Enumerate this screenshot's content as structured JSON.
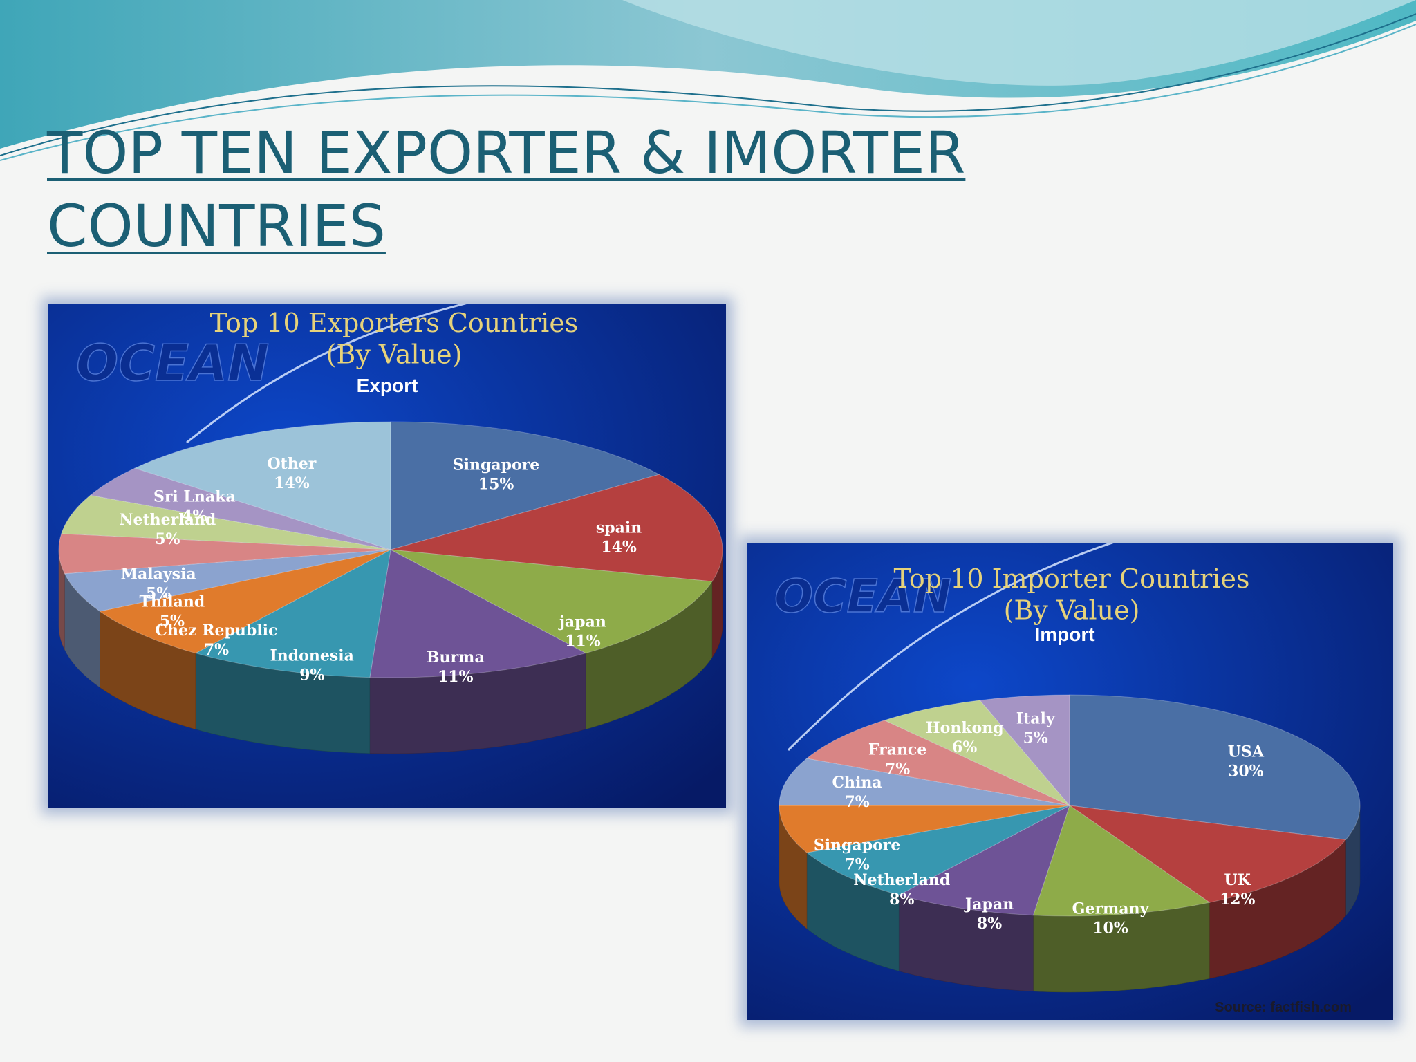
{
  "slide": {
    "title": "TOP TEN EXPORTER & IMORTER COUNTRIES"
  },
  "theme": {
    "title_color": "#1b5f74",
    "panel_blue": "#0d47c9",
    "panel_dark": "#061a66"
  },
  "chart_data": [
    {
      "type": "pie",
      "title": "Top 10 Exporters Countries (By Value)",
      "subtitle": "Export",
      "watermark": "OCEAN",
      "unit": "%",
      "slices": [
        {
          "label": "Singapore",
          "value": 15,
          "color": "#4a6fa5"
        },
        {
          "label": "spain",
          "value": 14,
          "color": "#b5403f"
        },
        {
          "label": "japan",
          "value": 11,
          "color": "#8eab49"
        },
        {
          "label": "Burma",
          "value": 11,
          "color": "#6e5396"
        },
        {
          "label": "Indonesia",
          "value": 9,
          "color": "#3797b0"
        },
        {
          "label": "Chez Republic",
          "value": 7,
          "color": "#e07b2c"
        },
        {
          "label": "Thiland",
          "value": 5,
          "color": "#8ba3cf"
        },
        {
          "label": "Malaysia",
          "value": 5,
          "color": "#d88585"
        },
        {
          "label": "Netherland",
          "value": 5,
          "color": "#bfd18f"
        },
        {
          "label": "Sri Lnaka",
          "value": 4,
          "color": "#a594c4"
        },
        {
          "label": "Other",
          "value": 14,
          "color": "#9cc3d9"
        }
      ]
    },
    {
      "type": "pie",
      "title": "Top 10 Importer Countries (By Value)",
      "subtitle": "Import",
      "watermark": "OCEAN",
      "source": "Source: factfish.com",
      "unit": "%",
      "slices": [
        {
          "label": "USA",
          "value": 30,
          "color": "#4a6fa5"
        },
        {
          "label": "UK",
          "value": 12,
          "color": "#b5403f"
        },
        {
          "label": "Germany",
          "value": 10,
          "color": "#8eab49"
        },
        {
          "label": "Japan",
          "value": 8,
          "color": "#6e5396"
        },
        {
          "label": "Netherland",
          "value": 8,
          "color": "#3797b0"
        },
        {
          "label": "Singapore",
          "value": 7,
          "color": "#e07b2c"
        },
        {
          "label": "China",
          "value": 7,
          "color": "#8ba3cf"
        },
        {
          "label": "France",
          "value": 7,
          "color": "#d88585"
        },
        {
          "label": "Honkong",
          "value": 6,
          "color": "#bfd18f"
        },
        {
          "label": "Italy",
          "value": 5,
          "color": "#a594c4"
        }
      ]
    }
  ]
}
